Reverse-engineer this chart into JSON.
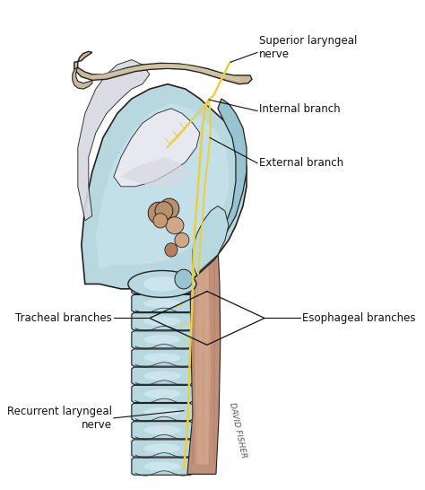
{
  "background_color": "#ffffff",
  "figure_size": [
    4.74,
    5.46
  ],
  "dpi": 100,
  "labels": {
    "superior_laryngeal_nerve": "Superior laryngeal\nnerve",
    "internal_branch": "Internal branch",
    "external_branch": "External branch",
    "tracheal_branches": "Tracheal branches",
    "esophageal_branches": "Esophageal branches",
    "recurrent_laryngeal_nerve": "Recurrent laryngeal\nnerve",
    "signature": "DAVID FISHER"
  },
  "colors": {
    "light_blue": "#b8d8e0",
    "mid_blue": "#98c4d0",
    "dark_blue": "#7aaab8",
    "pale_blue": "#cce4ec",
    "tan_bone": "#c8b898",
    "tan_light": "#d8cca8",
    "tan_dark": "#a89878",
    "muscle_pink": "#c09078",
    "muscle_mid": "#d0a888",
    "muscle_light": "#deb898",
    "nerve_yellow": "#e8d040",
    "nerve_thin": "#d8c030",
    "line_color": "#111111",
    "text_color": "#111111",
    "outline": "#222222",
    "white": "#ffffff",
    "grey_membrane": "#c8c8d0",
    "lavender": "#b8b8cc"
  }
}
